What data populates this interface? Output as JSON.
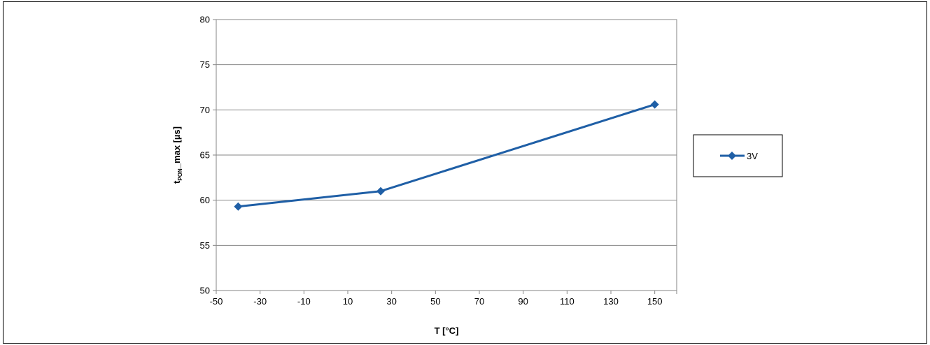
{
  "chart_data": {
    "type": "line",
    "title": "",
    "xlabel": "T [°C]",
    "ylabel_main": "t",
    "ylabel_sub": "PON",
    "ylabel_rest": "_max [µs]",
    "xlim": [
      -50,
      160
    ],
    "ylim": [
      50,
      80
    ],
    "xticks": [
      -50,
      -30,
      -10,
      10,
      30,
      50,
      70,
      90,
      110,
      130,
      150
    ],
    "yticks": [
      50,
      55,
      60,
      65,
      70,
      75,
      80
    ],
    "grid": "horizontal",
    "legend_position": "right",
    "series": [
      {
        "name": "3V",
        "color": "#1f5fa6",
        "marker": "diamond",
        "x": [
          -40,
          25,
          150
        ],
        "y": [
          59.3,
          61.0,
          70.6
        ]
      }
    ]
  }
}
